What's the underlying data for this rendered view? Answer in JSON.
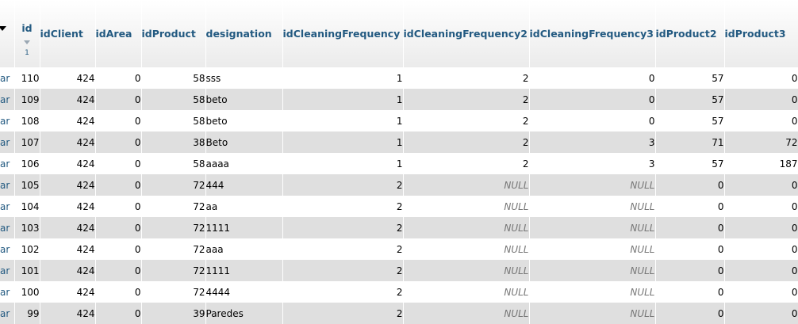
{
  "columns": {
    "id": "id",
    "id_sort_order": "1",
    "idClient": "idClient",
    "idArea": "idArea",
    "idProduct": "idProduct",
    "designation": "designation",
    "idCleaningFrequency": "idCleaningFrequency",
    "idCleaningFrequency2": "idCleaningFrequency2",
    "idCleaningFrequency3": "idCleaningFrequency3",
    "idProduct2": "idProduct2",
    "idProduct3": "idProduct3"
  },
  "row_action_fragment": "ar",
  "null_text": "NULL",
  "rows": [
    {
      "id": "110",
      "idClient": "424",
      "idArea": "0",
      "idProduct": "58",
      "designation": "sss",
      "f1": "1",
      "f2": "2",
      "f3": "0",
      "p2": "57",
      "p3": "0"
    },
    {
      "id": "109",
      "idClient": "424",
      "idArea": "0",
      "idProduct": "58",
      "designation": "beto",
      "f1": "1",
      "f2": "2",
      "f3": "0",
      "p2": "57",
      "p3": "0"
    },
    {
      "id": "108",
      "idClient": "424",
      "idArea": "0",
      "idProduct": "58",
      "designation": "beto",
      "f1": "1",
      "f2": "2",
      "f3": "0",
      "p2": "57",
      "p3": "0"
    },
    {
      "id": "107",
      "idClient": "424",
      "idArea": "0",
      "idProduct": "38",
      "designation": "Beto",
      "f1": "1",
      "f2": "2",
      "f3": "3",
      "p2": "71",
      "p3": "72"
    },
    {
      "id": "106",
      "idClient": "424",
      "idArea": "0",
      "idProduct": "58",
      "designation": "aaaa",
      "f1": "1",
      "f2": "2",
      "f3": "3",
      "p2": "57",
      "p3": "187"
    },
    {
      "id": "105",
      "idClient": "424",
      "idArea": "0",
      "idProduct": "72",
      "designation": "444",
      "f1": "2",
      "f2": "NULL",
      "f3": "NULL",
      "p2": "0",
      "p3": "0"
    },
    {
      "id": "104",
      "idClient": "424",
      "idArea": "0",
      "idProduct": "72",
      "designation": "aa",
      "f1": "2",
      "f2": "NULL",
      "f3": "NULL",
      "p2": "0",
      "p3": "0"
    },
    {
      "id": "103",
      "idClient": "424",
      "idArea": "0",
      "idProduct": "72",
      "designation": "1111",
      "f1": "2",
      "f2": "NULL",
      "f3": "NULL",
      "p2": "0",
      "p3": "0"
    },
    {
      "id": "102",
      "idClient": "424",
      "idArea": "0",
      "idProduct": "72",
      "designation": "aaa",
      "f1": "2",
      "f2": "NULL",
      "f3": "NULL",
      "p2": "0",
      "p3": "0"
    },
    {
      "id": "101",
      "idClient": "424",
      "idArea": "0",
      "idProduct": "72",
      "designation": "1111",
      "f1": "2",
      "f2": "NULL",
      "f3": "NULL",
      "p2": "0",
      "p3": "0"
    },
    {
      "id": "100",
      "idClient": "424",
      "idArea": "0",
      "idProduct": "72",
      "designation": "4444",
      "f1": "2",
      "f2": "NULL",
      "f3": "NULL",
      "p2": "0",
      "p3": "0"
    },
    {
      "id": "99",
      "idClient": "424",
      "idArea": "0",
      "idProduct": "39",
      "designation": "Paredes",
      "f1": "2",
      "f2": "NULL",
      "f3": "NULL",
      "p2": "0",
      "p3": "0"
    }
  ]
}
